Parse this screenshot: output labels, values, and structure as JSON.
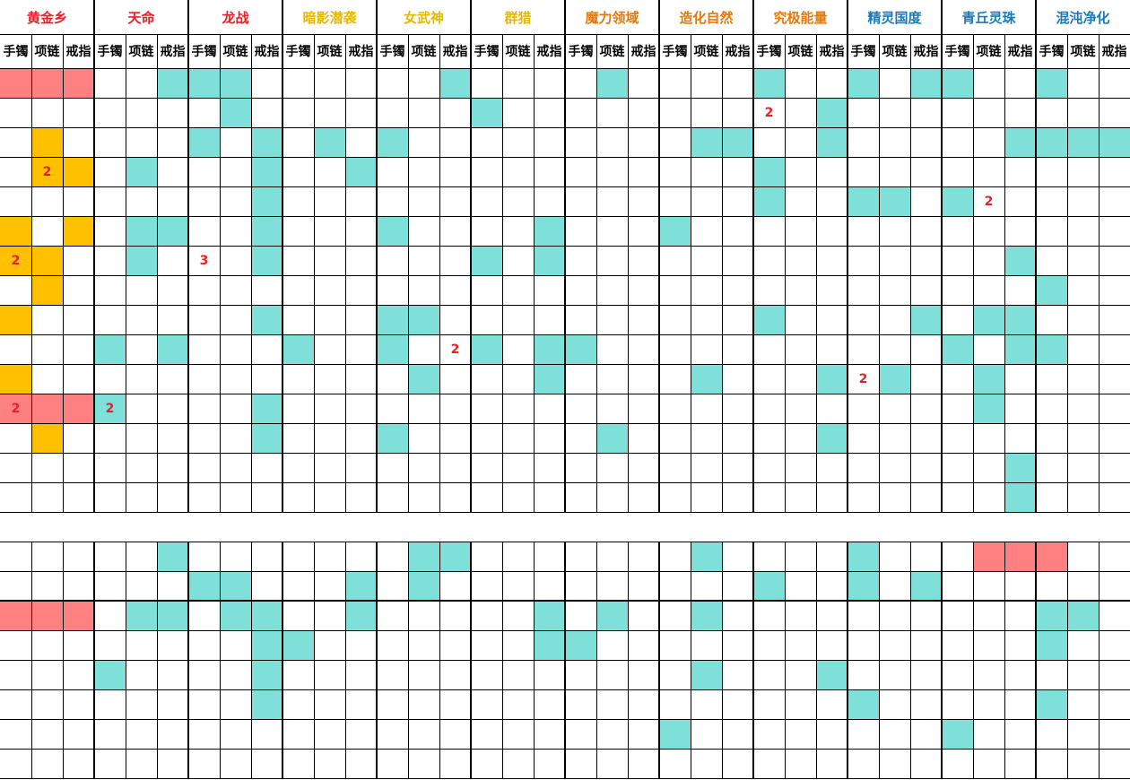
{
  "groups": [
    {
      "name": "黄金乡",
      "color": "#e8202a"
    },
    {
      "name": "天命",
      "color": "#e8202a"
    },
    {
      "name": "龙战",
      "color": "#e8202a"
    },
    {
      "name": "暗影潜袭",
      "color": "#e6b800"
    },
    {
      "name": "女武神",
      "color": "#e6b800"
    },
    {
      "name": "群猎",
      "color": "#e6b800"
    },
    {
      "name": "魔力领域",
      "color": "#e07a10"
    },
    {
      "name": "造化自然",
      "color": "#e07a10"
    },
    {
      "name": "究极能量",
      "color": "#e07a10"
    },
    {
      "name": "精灵国度",
      "color": "#1a7ab8"
    },
    {
      "name": "青丘灵珠",
      "color": "#1a7ab8"
    },
    {
      "name": "混沌净化",
      "color": "#1a7ab8"
    }
  ],
  "subheaders": [
    "手镯",
    "项链",
    "戒指"
  ],
  "palette": {
    "R": "#ff8080",
    "O": "#ffc000",
    "T": "#7fdfd9",
    "W": "#ffffff"
  },
  "top_rows": [
    "RRRWWTTTWWWWWWTWWWWTWWWWTWWTWTTWWTWWTTT",
    "WWWWWWWTWWWWWWWTWWWWWWWWWWTWWWWWWWWWWWW",
    "WOWWWWTWTWTWTWWWWWWWWWTTWWTWWWWWTTTTTWW",
    "WOOWTWWWTWWTWWWWWWWWWWWWTWWWWWWWWWWWWTW",
    "WWWWWWWWTWWWWWWWWWWWWWWWTWWTTWTWWWWWWWW",
    "OWOWTTWWTWWWTWWWWTWWWTWWWWWWWWWWWWWWWTW",
    "OOWWTWWWTWWWWWWTWTWWWWWWWWWWWWWWTWWWWWT",
    "WOWWWWWWWWWWWWWWWWWWWWWWWWWWWWWWWTWWWWW",
    "OWWWWWWWTWWWTTWWWWWWWWWWTWWWWTWTTWWWWWW",
    "WWWTWTWWWTWWTWWTWTTWWWWWWWWWWWTWTTWWWWW",
    "OWWWWWWWWWWWWTWWWTWWWWTWWWTWTWWTWWWWWWW",
    "RRRTWWWWTWWWWWWWWWWWWWWWWWWWWWWTWWWWWWW",
    "WOWWWWWWTWWWTWWWWWWTWWWWWWTWWWWWWWWWWWW",
    "WWWWWWWWWWWWWWWWWWWWWWWWWWWWWWWWTWWWWWW",
    "WWWWWWWWWWWWWWWWWWWWWWWWWWWWWWWWTWWWWWW"
  ],
  "top_row_fix": {
    "2": {
      "col": 35,
      "val": "T"
    },
    "3": {
      "col": 36,
      "val": "T"
    }
  },
  "bottom_rows": [
    "WWWWWTWWWWWWWTTWWWWWWWTWWWWTWWWRRRWWW",
    "WWWWWWTTWWWTWTWWWWWWWWWWTWWTWTWWWWWWW",
    "RRRWTTWTTWWTWWWWWTWTWWTWWWWWWWWWWTTWW",
    "WWWWWWWWTTWWWWWWWTTWWWWWWWWWWWWWWTWWW",
    "WWWTWWWWTWWWWWWWWWWWWWTWWWTWWWWWWWWWT",
    "WWWWWWWWTWWWWWWWWWWWWWWWWWWTWWWWWTWWW",
    "WWWWWWWWWWWWWWWWWWWWWTWWWWWWWWTWWWWWW",
    "WWWWWWWWWWWWWWWWWWWWWWWWWWWWWWWWWWWWW"
  ],
  "labels": [
    {
      "section": "top",
      "row": 1,
      "col": 24,
      "text": "2"
    },
    {
      "section": "top",
      "row": 3,
      "col": 1,
      "text": "2"
    },
    {
      "section": "top",
      "row": 4,
      "col": 31,
      "text": "2"
    },
    {
      "section": "top",
      "row": 6,
      "col": 0,
      "text": "2"
    },
    {
      "section": "top",
      "row": 6,
      "col": 6,
      "text": "3"
    },
    {
      "section": "top",
      "row": 9,
      "col": 14,
      "text": "2"
    },
    {
      "section": "top",
      "row": 10,
      "col": 27,
      "text": "2"
    },
    {
      "section": "top",
      "row": 11,
      "col": 0,
      "text": "2"
    },
    {
      "section": "top",
      "row": 11,
      "col": 3,
      "text": "2"
    }
  ]
}
